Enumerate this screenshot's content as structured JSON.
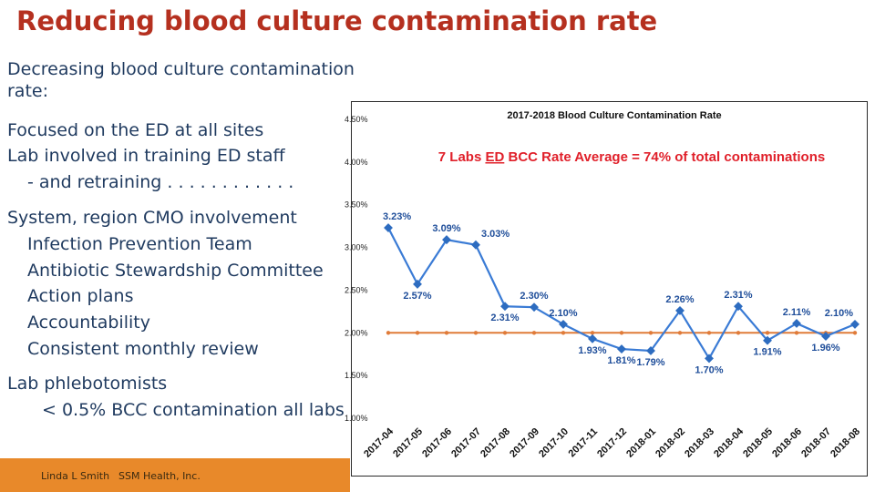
{
  "slide": {
    "title": "Reducing blood culture contamination rate",
    "body_lines": [
      "Decreasing blood culture contamination",
      "rate:",
      "Focused on the ED at all sites",
      "Lab involved in training ED staff",
      "- and retraining . . . . . . . . . . . .",
      "System, region CMO involvement",
      "Infection Prevention Team",
      "Antibiotic Stewardship Committee",
      "Action plans",
      "Accountability",
      "Consistent monthly review",
      "Lab phlebotomists",
      "< 0.5% BCC contamination all labs"
    ],
    "footer": {
      "author": "Linda L Smith",
      "org": "SSM Health, Inc."
    }
  },
  "colors": {
    "title": "#b5301f",
    "body_text": "#1f3a5f",
    "footer_bar": "#e8892a",
    "series_line": "#3a7bd5",
    "series_marker": "#2d6cc0",
    "target_line": "#e07b39",
    "annotation": "#e0202a"
  },
  "chart_data": {
    "type": "line",
    "title": "2017-2018 Blood Culture Contamination Rate",
    "annotation": {
      "prefix": "7 Labs ",
      "underlined": "ED",
      "suffix": " BCC Rate Average = 74% of total contaminations"
    },
    "categories": [
      "2017-04",
      "2017-05",
      "2017-06",
      "2017-07",
      "2017-08",
      "2017-09",
      "2017-10",
      "2017-11",
      "2017-12",
      "2018-01",
      "2018-02",
      "2018-03",
      "2018-04",
      "2018-05",
      "2018-06",
      "2018-07",
      "2018-08"
    ],
    "series": [
      {
        "values": [
          3.23,
          2.57,
          3.09,
          3.03,
          2.31,
          2.3,
          2.1,
          1.93,
          1.81,
          1.79,
          2.26,
          1.7,
          2.31,
          1.91,
          2.11,
          1.96,
          2.1
        ],
        "labels": [
          "3.23%",
          "2.57%",
          "3.09%",
          "3.03%",
          "2.31%",
          "2.30%",
          "2.10%",
          "1.93%",
          "1.81%",
          "1.79%",
          "2.26%",
          "1.70%",
          "2.31%",
          "1.91%",
          "2.11%",
          "1.96%",
          "2.10%"
        ]
      },
      {
        "values": [
          2.0,
          2.0,
          2.0,
          2.0,
          2.0,
          2.0,
          2.0,
          2.0,
          2.0,
          2.0,
          2.0,
          2.0,
          2.0,
          2.0,
          2.0,
          2.0,
          2.0
        ]
      }
    ],
    "y_ticks": [
      4.5,
      4.0,
      3.5,
      3.0,
      2.5,
      2.0,
      1.5,
      1.0
    ],
    "y_tick_labels": [
      "4.50%",
      "4.00%",
      "3.50%",
      "3.00%",
      "2.50%",
      "2.00%",
      "1.50%",
      "1.00%"
    ],
    "ylim": [
      1.0,
      4.5
    ],
    "grid": false
  }
}
